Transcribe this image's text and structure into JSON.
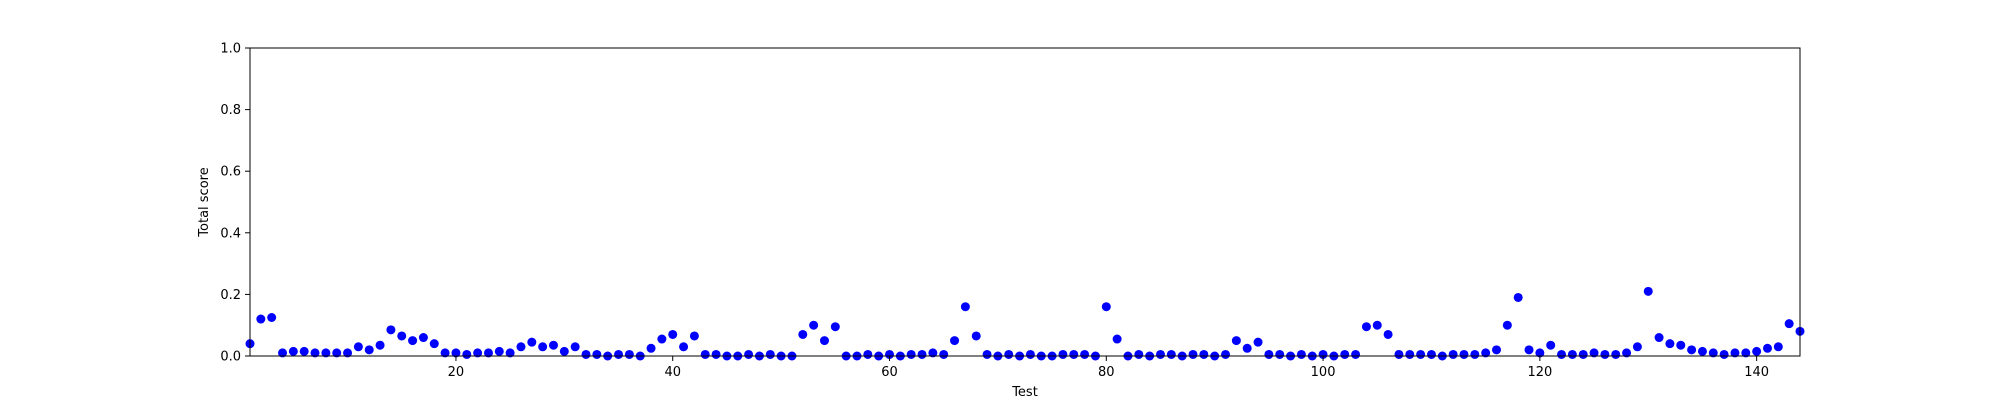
{
  "chart_data": {
    "type": "scatter",
    "title": "",
    "xlabel": "Test",
    "ylabel": "Total score",
    "xlim": [
      1,
      144
    ],
    "ylim": [
      0,
      1.0
    ],
    "x_ticks": [
      20,
      40,
      60,
      80,
      100,
      120,
      140
    ],
    "y_ticks": [
      0.0,
      0.2,
      0.4,
      0.6,
      0.8,
      1.0
    ],
    "y_tick_labels": [
      "0.0",
      "0.2",
      "0.4",
      "0.6",
      "0.8",
      "1.0"
    ],
    "grid": false,
    "marker_color": "#0000ff",
    "x": [
      1,
      2,
      3,
      4,
      5,
      6,
      7,
      8,
      9,
      10,
      11,
      12,
      13,
      14,
      15,
      16,
      17,
      18,
      19,
      20,
      21,
      22,
      23,
      24,
      25,
      26,
      27,
      28,
      29,
      30,
      31,
      32,
      33,
      34,
      35,
      36,
      37,
      38,
      39,
      40,
      41,
      42,
      43,
      44,
      45,
      46,
      47,
      48,
      49,
      50,
      51,
      52,
      53,
      54,
      55,
      56,
      57,
      58,
      59,
      60,
      61,
      62,
      63,
      64,
      65,
      66,
      67,
      68,
      69,
      70,
      71,
      72,
      73,
      74,
      75,
      76,
      77,
      78,
      79,
      80,
      81,
      82,
      83,
      84,
      85,
      86,
      87,
      88,
      89,
      90,
      91,
      92,
      93,
      94,
      95,
      96,
      97,
      98,
      99,
      100,
      101,
      102,
      103,
      104,
      105,
      106,
      107,
      108,
      109,
      110,
      111,
      112,
      113,
      114,
      115,
      116,
      117,
      118,
      119,
      120,
      121,
      122,
      123,
      124,
      125,
      126,
      127,
      128,
      129,
      130,
      131,
      132,
      133,
      134,
      135,
      136,
      137,
      138,
      139,
      140,
      141,
      142,
      143,
      144
    ],
    "y": [
      0.04,
      0.12,
      0.125,
      0.01,
      0.015,
      0.015,
      0.01,
      0.01,
      0.01,
      0.01,
      0.03,
      0.02,
      0.035,
      0.085,
      0.065,
      0.05,
      0.06,
      0.04,
      0.01,
      0.01,
      0.005,
      0.01,
      0.01,
      0.015,
      0.01,
      0.03,
      0.045,
      0.03,
      0.035,
      0.015,
      0.03,
      0.005,
      0.005,
      0.0,
      0.005,
      0.005,
      0.0,
      0.025,
      0.055,
      0.07,
      0.03,
      0.065,
      0.005,
      0.005,
      0.0,
      0.0,
      0.005,
      0.0,
      0.005,
      0.0,
      0.0,
      0.07,
      0.1,
      0.05,
      0.095,
      0.0,
      0.0,
      0.005,
      0.0,
      0.005,
      0.0,
      0.005,
      0.005,
      0.01,
      0.005,
      0.05,
      0.16,
      0.065,
      0.005,
      0.0,
      0.005,
      0.0,
      0.005,
      0.0,
      0.0,
      0.005,
      0.005,
      0.005,
      0.0,
      0.16,
      0.055,
      0.0,
      0.005,
      0.0,
      0.005,
      0.005,
      0.0,
      0.005,
      0.005,
      0.0,
      0.005,
      0.05,
      0.025,
      0.045,
      0.005,
      0.005,
      0.0,
      0.005,
      0.0,
      0.005,
      0.0,
      0.005,
      0.005,
      0.095,
      0.1,
      0.07,
      0.005,
      0.005,
      0.005,
      0.005,
      0.0,
      0.005,
      0.005,
      0.005,
      0.01,
      0.02,
      0.1,
      0.19,
      0.02,
      0.01,
      0.035,
      0.005,
      0.005,
      0.005,
      0.01,
      0.005,
      0.005,
      0.01,
      0.03,
      0.21,
      0.06,
      0.04,
      0.035,
      0.02,
      0.015,
      0.01,
      0.005,
      0.01,
      0.01,
      0.015,
      0.025,
      0.03,
      0.105,
      0.08
    ]
  }
}
